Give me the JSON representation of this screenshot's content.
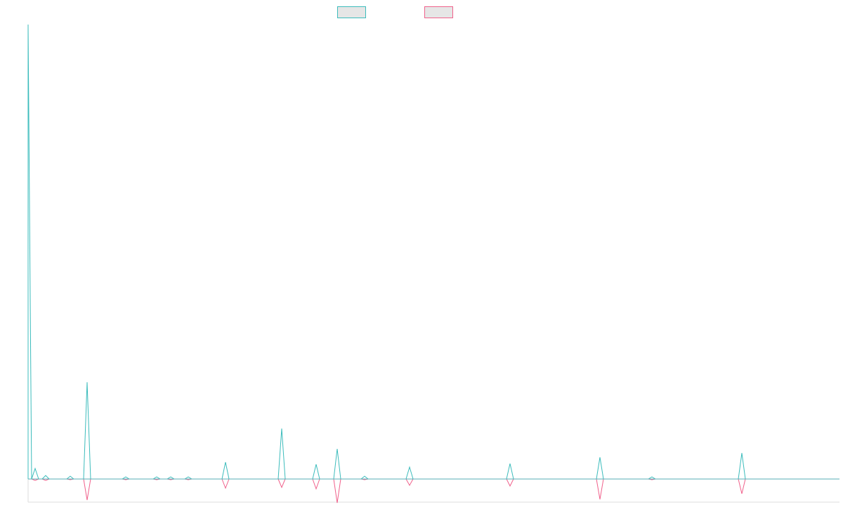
{
  "chart_data": {
    "type": "line",
    "title": "",
    "xlabel": "",
    "ylabel": "",
    "grid": false,
    "legend": {
      "placement": "top-center"
    },
    "ylim": [
      -34,
      648
    ],
    "series": [
      {
        "name": "",
        "color": "#3cbcbc",
        "fill": "#e6e6e6",
        "points": [
          {
            "x": 0,
            "y": 648
          },
          {
            "x": 10,
            "y": 15
          },
          {
            "x": 25,
            "y": 5
          },
          {
            "x": 60,
            "y": 4
          },
          {
            "x": 84,
            "y": 138
          },
          {
            "x": 139,
            "y": 3
          },
          {
            "x": 183,
            "y": 3
          },
          {
            "x": 203,
            "y": 3
          },
          {
            "x": 228,
            "y": 3
          },
          {
            "x": 281,
            "y": 24
          },
          {
            "x": 361,
            "y": 72
          },
          {
            "x": 410,
            "y": 21
          },
          {
            "x": 440,
            "y": 43
          },
          {
            "x": 479,
            "y": 4
          },
          {
            "x": 543,
            "y": 17
          },
          {
            "x": 686,
            "y": 22
          },
          {
            "x": 814,
            "y": 31
          },
          {
            "x": 888,
            "y": 3
          },
          {
            "x": 1016,
            "y": 37
          }
        ]
      },
      {
        "name": "",
        "color": "#f0628c",
        "fill": "#e6e6e6",
        "points": [
          {
            "x": 10,
            "y": -2
          },
          {
            "x": 25,
            "y": -2
          },
          {
            "x": 60,
            "y": -1
          },
          {
            "x": 84,
            "y": -30
          },
          {
            "x": 139,
            "y": -1
          },
          {
            "x": 183,
            "y": -1
          },
          {
            "x": 203,
            "y": -1
          },
          {
            "x": 228,
            "y": -1
          },
          {
            "x": 281,
            "y": -13
          },
          {
            "x": 361,
            "y": -12
          },
          {
            "x": 410,
            "y": -14
          },
          {
            "x": 440,
            "y": -34
          },
          {
            "x": 479,
            "y": -1
          },
          {
            "x": 543,
            "y": -9
          },
          {
            "x": 686,
            "y": -10
          },
          {
            "x": 814,
            "y": -29
          },
          {
            "x": 888,
            "y": -1
          },
          {
            "x": 1016,
            "y": -21
          }
        ]
      }
    ],
    "x_domain": [
      0,
      1155
    ]
  }
}
